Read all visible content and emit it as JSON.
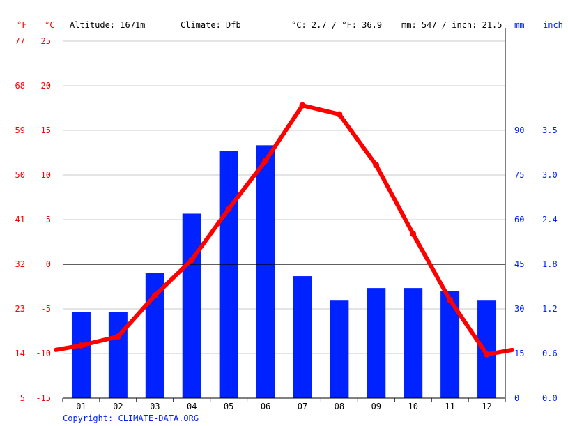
{
  "header": {
    "unit_f": "°F",
    "unit_c": "°C",
    "altitude": "Altitude: 1671m",
    "climate": "Climate: Dfb",
    "temp_avg": "°C: 2.7 / °F: 36.9",
    "precip_total": "mm: 547 / inch: 21.5",
    "unit_mm": "mm",
    "unit_inch": "inch"
  },
  "copyright": "Copyright: CLIMATE-DATA.ORG",
  "colors": {
    "temperature": "#ff0000",
    "precipitation": "#0022ff",
    "grid": "#c8c8c8",
    "zero_line": "#000000"
  },
  "chart_data": {
    "type": "bar+line",
    "categories": [
      "01",
      "02",
      "03",
      "04",
      "05",
      "06",
      "07",
      "08",
      "09",
      "10",
      "11",
      "12"
    ],
    "series": [
      {
        "type": "bar",
        "axis": "right",
        "unit": "mm",
        "values": [
          29,
          29,
          42,
          62,
          83,
          85,
          41,
          33,
          37,
          37,
          36,
          33
        ]
      },
      {
        "type": "line",
        "axis": "left",
        "unit": "°C",
        "values": [
          -9.1,
          -8.1,
          -3.5,
          0.5,
          6.2,
          11.6,
          17.8,
          16.8,
          11.1,
          3.4,
          -4,
          -10.1
        ]
      }
    ],
    "temp_edge_start": -9.6,
    "temp_edge_end": -9.6,
    "y_left_c": {
      "range": [
        -15,
        25
      ],
      "ticks": [
        "-15",
        "-10",
        "-5",
        "0",
        "5",
        "10",
        "15",
        "20",
        "25"
      ]
    },
    "y_left_f": {
      "ticks": [
        "5",
        "14",
        "23",
        "32",
        "41",
        "50",
        "59",
        "68",
        "77"
      ]
    },
    "y_right_mm": {
      "range": [
        0,
        90
      ],
      "ticks": [
        "0",
        "15",
        "30",
        "45",
        "60",
        "75",
        "90"
      ]
    },
    "y_right_inch": {
      "ticks": [
        "0.0",
        "0.6",
        "1.2",
        "1.8",
        "2.4",
        "3.0",
        "3.5"
      ]
    },
    "grid": true
  }
}
